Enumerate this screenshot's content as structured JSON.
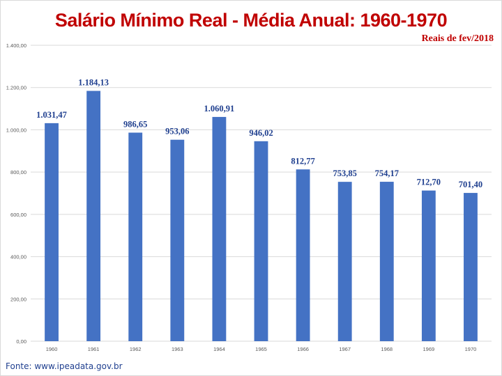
{
  "chart_data": {
    "type": "bar",
    "title": "Salário Mínimo Real - Média Anual: 1960-1970",
    "subtitle": "Reais de fev/2018",
    "source": "Fonte: www.ipeadata.gov.br",
    "categories": [
      "1960",
      "1961",
      "1962",
      "1963",
      "1964",
      "1965",
      "1966",
      "1967",
      "1968",
      "1969",
      "1970"
    ],
    "values": [
      1031.47,
      1184.13,
      986.65,
      953.06,
      1060.91,
      946.02,
      812.77,
      753.85,
      754.17,
      712.7,
      701.4
    ],
    "data_labels": [
      "1.031,47",
      "1.184,13",
      "986,65",
      "953,06",
      "1.060,91",
      "946,02",
      "812,77",
      "753,85",
      "754,17",
      "712,70",
      "701,40"
    ],
    "ylim": [
      0,
      1400
    ],
    "yticks": [
      0,
      200,
      400,
      600,
      800,
      1000,
      1200,
      1400
    ],
    "ytick_labels": [
      "0,00",
      "200,00",
      "400,00",
      "600,00",
      "800,00",
      "1.000,00",
      "1.200,00",
      "1.400,00"
    ],
    "grid": true,
    "legend": "none",
    "bar_color": "#4472c4",
    "title_color": "#c00000",
    "label_color": "#1f3f8f"
  }
}
